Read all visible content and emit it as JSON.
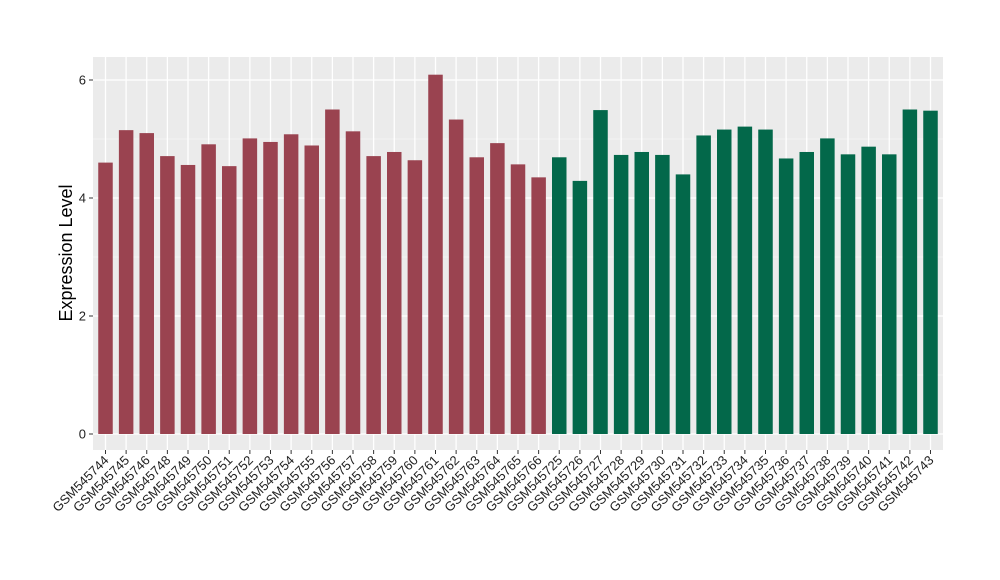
{
  "chart_data": {
    "type": "bar",
    "title": "",
    "xlabel": "",
    "ylabel": "Expression Level",
    "ylim": [
      0,
      6.25
    ],
    "yticks": [
      0,
      2,
      4,
      6
    ],
    "grid": true,
    "legend": "none",
    "colors": {
      "panel_background": "#ebebeb",
      "grid_major": "#ffffff",
      "group_a": "#9a4350",
      "group_b": "#03684a",
      "tick_text": "#1f1f1f",
      "axis_title": "#000000"
    },
    "bars": [
      {
        "label": "GSM545744",
        "value": 4.6,
        "group": "group_a"
      },
      {
        "label": "GSM545745",
        "value": 5.15,
        "group": "group_a"
      },
      {
        "label": "GSM545746",
        "value": 5.1,
        "group": "group_a"
      },
      {
        "label": "GSM545748",
        "value": 4.71,
        "group": "group_a"
      },
      {
        "label": "GSM545749",
        "value": 4.56,
        "group": "group_a"
      },
      {
        "label": "GSM545750",
        "value": 4.91,
        "group": "group_a"
      },
      {
        "label": "GSM545751",
        "value": 4.54,
        "group": "group_a"
      },
      {
        "label": "GSM545752",
        "value": 5.01,
        "group": "group_a"
      },
      {
        "label": "GSM545753",
        "value": 4.95,
        "group": "group_a"
      },
      {
        "label": "GSM545754",
        "value": 5.08,
        "group": "group_a"
      },
      {
        "label": "GSM545755",
        "value": 4.89,
        "group": "group_a"
      },
      {
        "label": "GSM545756",
        "value": 5.5,
        "group": "group_a"
      },
      {
        "label": "GSM545757",
        "value": 5.13,
        "group": "group_a"
      },
      {
        "label": "GSM545758",
        "value": 4.71,
        "group": "group_a"
      },
      {
        "label": "GSM545759",
        "value": 4.78,
        "group": "group_a"
      },
      {
        "label": "GSM545760",
        "value": 4.64,
        "group": "group_a"
      },
      {
        "label": "GSM545761",
        "value": 6.09,
        "group": "group_a"
      },
      {
        "label": "GSM545762",
        "value": 5.33,
        "group": "group_a"
      },
      {
        "label": "GSM545763",
        "value": 4.69,
        "group": "group_a"
      },
      {
        "label": "GSM545764",
        "value": 4.93,
        "group": "group_a"
      },
      {
        "label": "GSM545765",
        "value": 4.57,
        "group": "group_a"
      },
      {
        "label": "GSM545766",
        "value": 4.35,
        "group": "group_a"
      },
      {
        "label": "GSM545725",
        "value": 4.69,
        "group": "group_b"
      },
      {
        "label": "GSM545726",
        "value": 4.29,
        "group": "group_b"
      },
      {
        "label": "GSM545727",
        "value": 5.49,
        "group": "group_b"
      },
      {
        "label": "GSM545728",
        "value": 4.73,
        "group": "group_b"
      },
      {
        "label": "GSM545729",
        "value": 4.78,
        "group": "group_b"
      },
      {
        "label": "GSM545730",
        "value": 4.73,
        "group": "group_b"
      },
      {
        "label": "GSM545731",
        "value": 4.4,
        "group": "group_b"
      },
      {
        "label": "GSM545732",
        "value": 5.06,
        "group": "group_b"
      },
      {
        "label": "GSM545733",
        "value": 5.16,
        "group": "group_b"
      },
      {
        "label": "GSM545734",
        "value": 5.21,
        "group": "group_b"
      },
      {
        "label": "GSM545735",
        "value": 5.16,
        "group": "group_b"
      },
      {
        "label": "GSM545736",
        "value": 4.67,
        "group": "group_b"
      },
      {
        "label": "GSM545737",
        "value": 4.78,
        "group": "group_b"
      },
      {
        "label": "GSM545738",
        "value": 5.01,
        "group": "group_b"
      },
      {
        "label": "GSM545739",
        "value": 4.74,
        "group": "group_b"
      },
      {
        "label": "GSM545740",
        "value": 4.87,
        "group": "group_b"
      },
      {
        "label": "GSM545741",
        "value": 4.74,
        "group": "group_b"
      },
      {
        "label": "GSM545742",
        "value": 5.5,
        "group": "group_b"
      },
      {
        "label": "GSM545743",
        "value": 5.48,
        "group": "group_b"
      }
    ]
  }
}
